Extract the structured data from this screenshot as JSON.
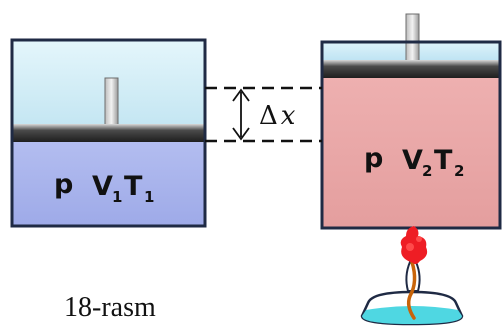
{
  "figure": {
    "caption": "18-rasm",
    "left_cylinder": {
      "label_p": "p",
      "label_v": "V",
      "label_v_sub": "1",
      "label_t": "T",
      "label_t_sub": "1"
    },
    "right_cylinder": {
      "label_p": "p",
      "label_v": "V",
      "label_v_sub": "2",
      "label_t": "T",
      "label_t_sub": "2"
    },
    "displacement": {
      "symbol_delta": "Δ",
      "symbol_x": "x"
    }
  },
  "colors": {
    "left_gas": "#a9b5ec",
    "right_gas": "#e9a8a8",
    "air_top": "#dff4fa",
    "air_bottom": "#9fd6ea",
    "piston": "#3a3a3a",
    "flame": "#ee1d24",
    "wick": "#c8640a",
    "fuel": "#4fd7e2",
    "frame": "#1f2a44"
  },
  "icons": {
    "heater": "alcohol-burner-icon",
    "flame": "flame-icon"
  }
}
